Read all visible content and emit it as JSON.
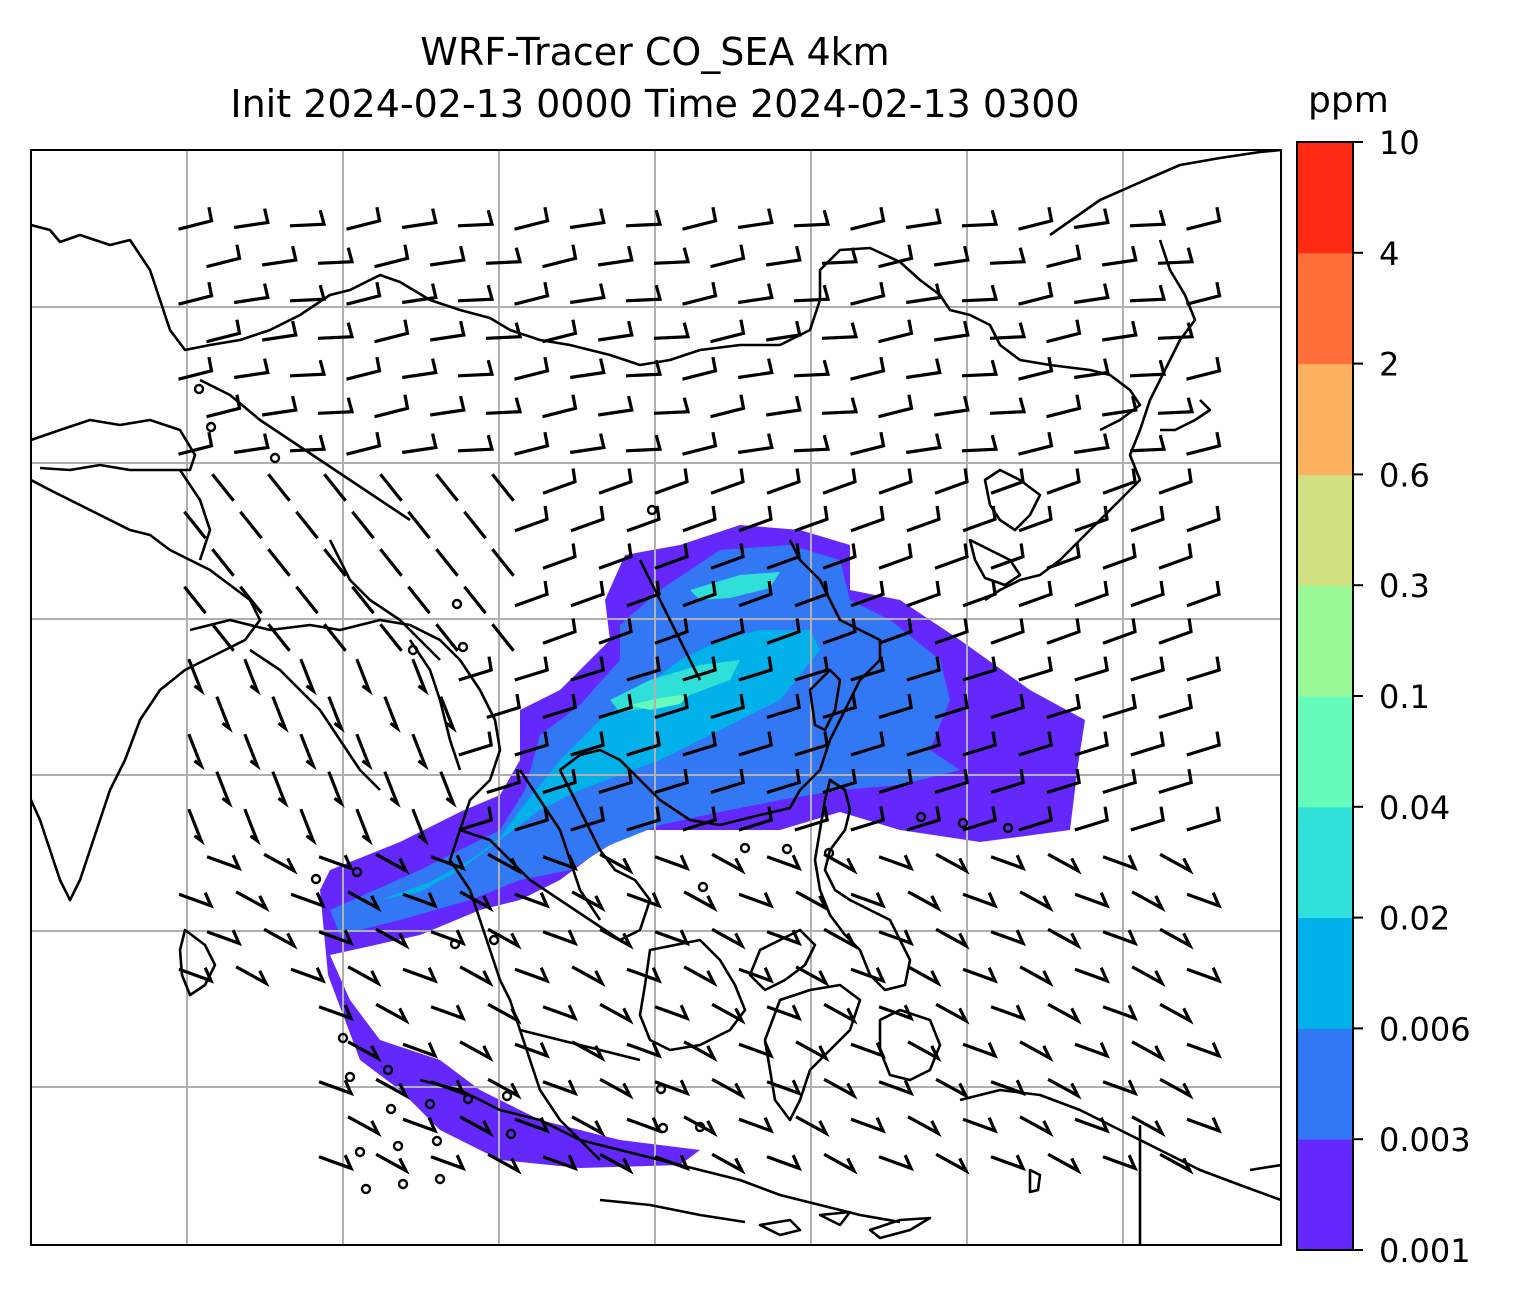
{
  "title": {
    "line1": "WRF-Tracer CO_SEA 4km",
    "line2": "Init 2024-02-13 0000 Time 2024-02-13 0300"
  },
  "colorbar": {
    "unit_label": "ppm",
    "levels": [
      "0.001",
      "0.003",
      "0.006",
      "0.02",
      "0.04",
      "0.1",
      "0.3",
      "0.6",
      "2",
      "4",
      "10"
    ],
    "colors": [
      "#6427fc",
      "#3278f4",
      "#02b0ea",
      "#2fdfd8",
      "#66fbbb",
      "#99f996",
      "#d0e080",
      "#fdb15e",
      "#ff6f39",
      "#ff2a14"
    ]
  },
  "map": {
    "gridlines": "on",
    "features": [
      "coastlines",
      "country-borders"
    ],
    "overlays": [
      "CO tracer concentration shading",
      "wind barbs"
    ]
  }
}
